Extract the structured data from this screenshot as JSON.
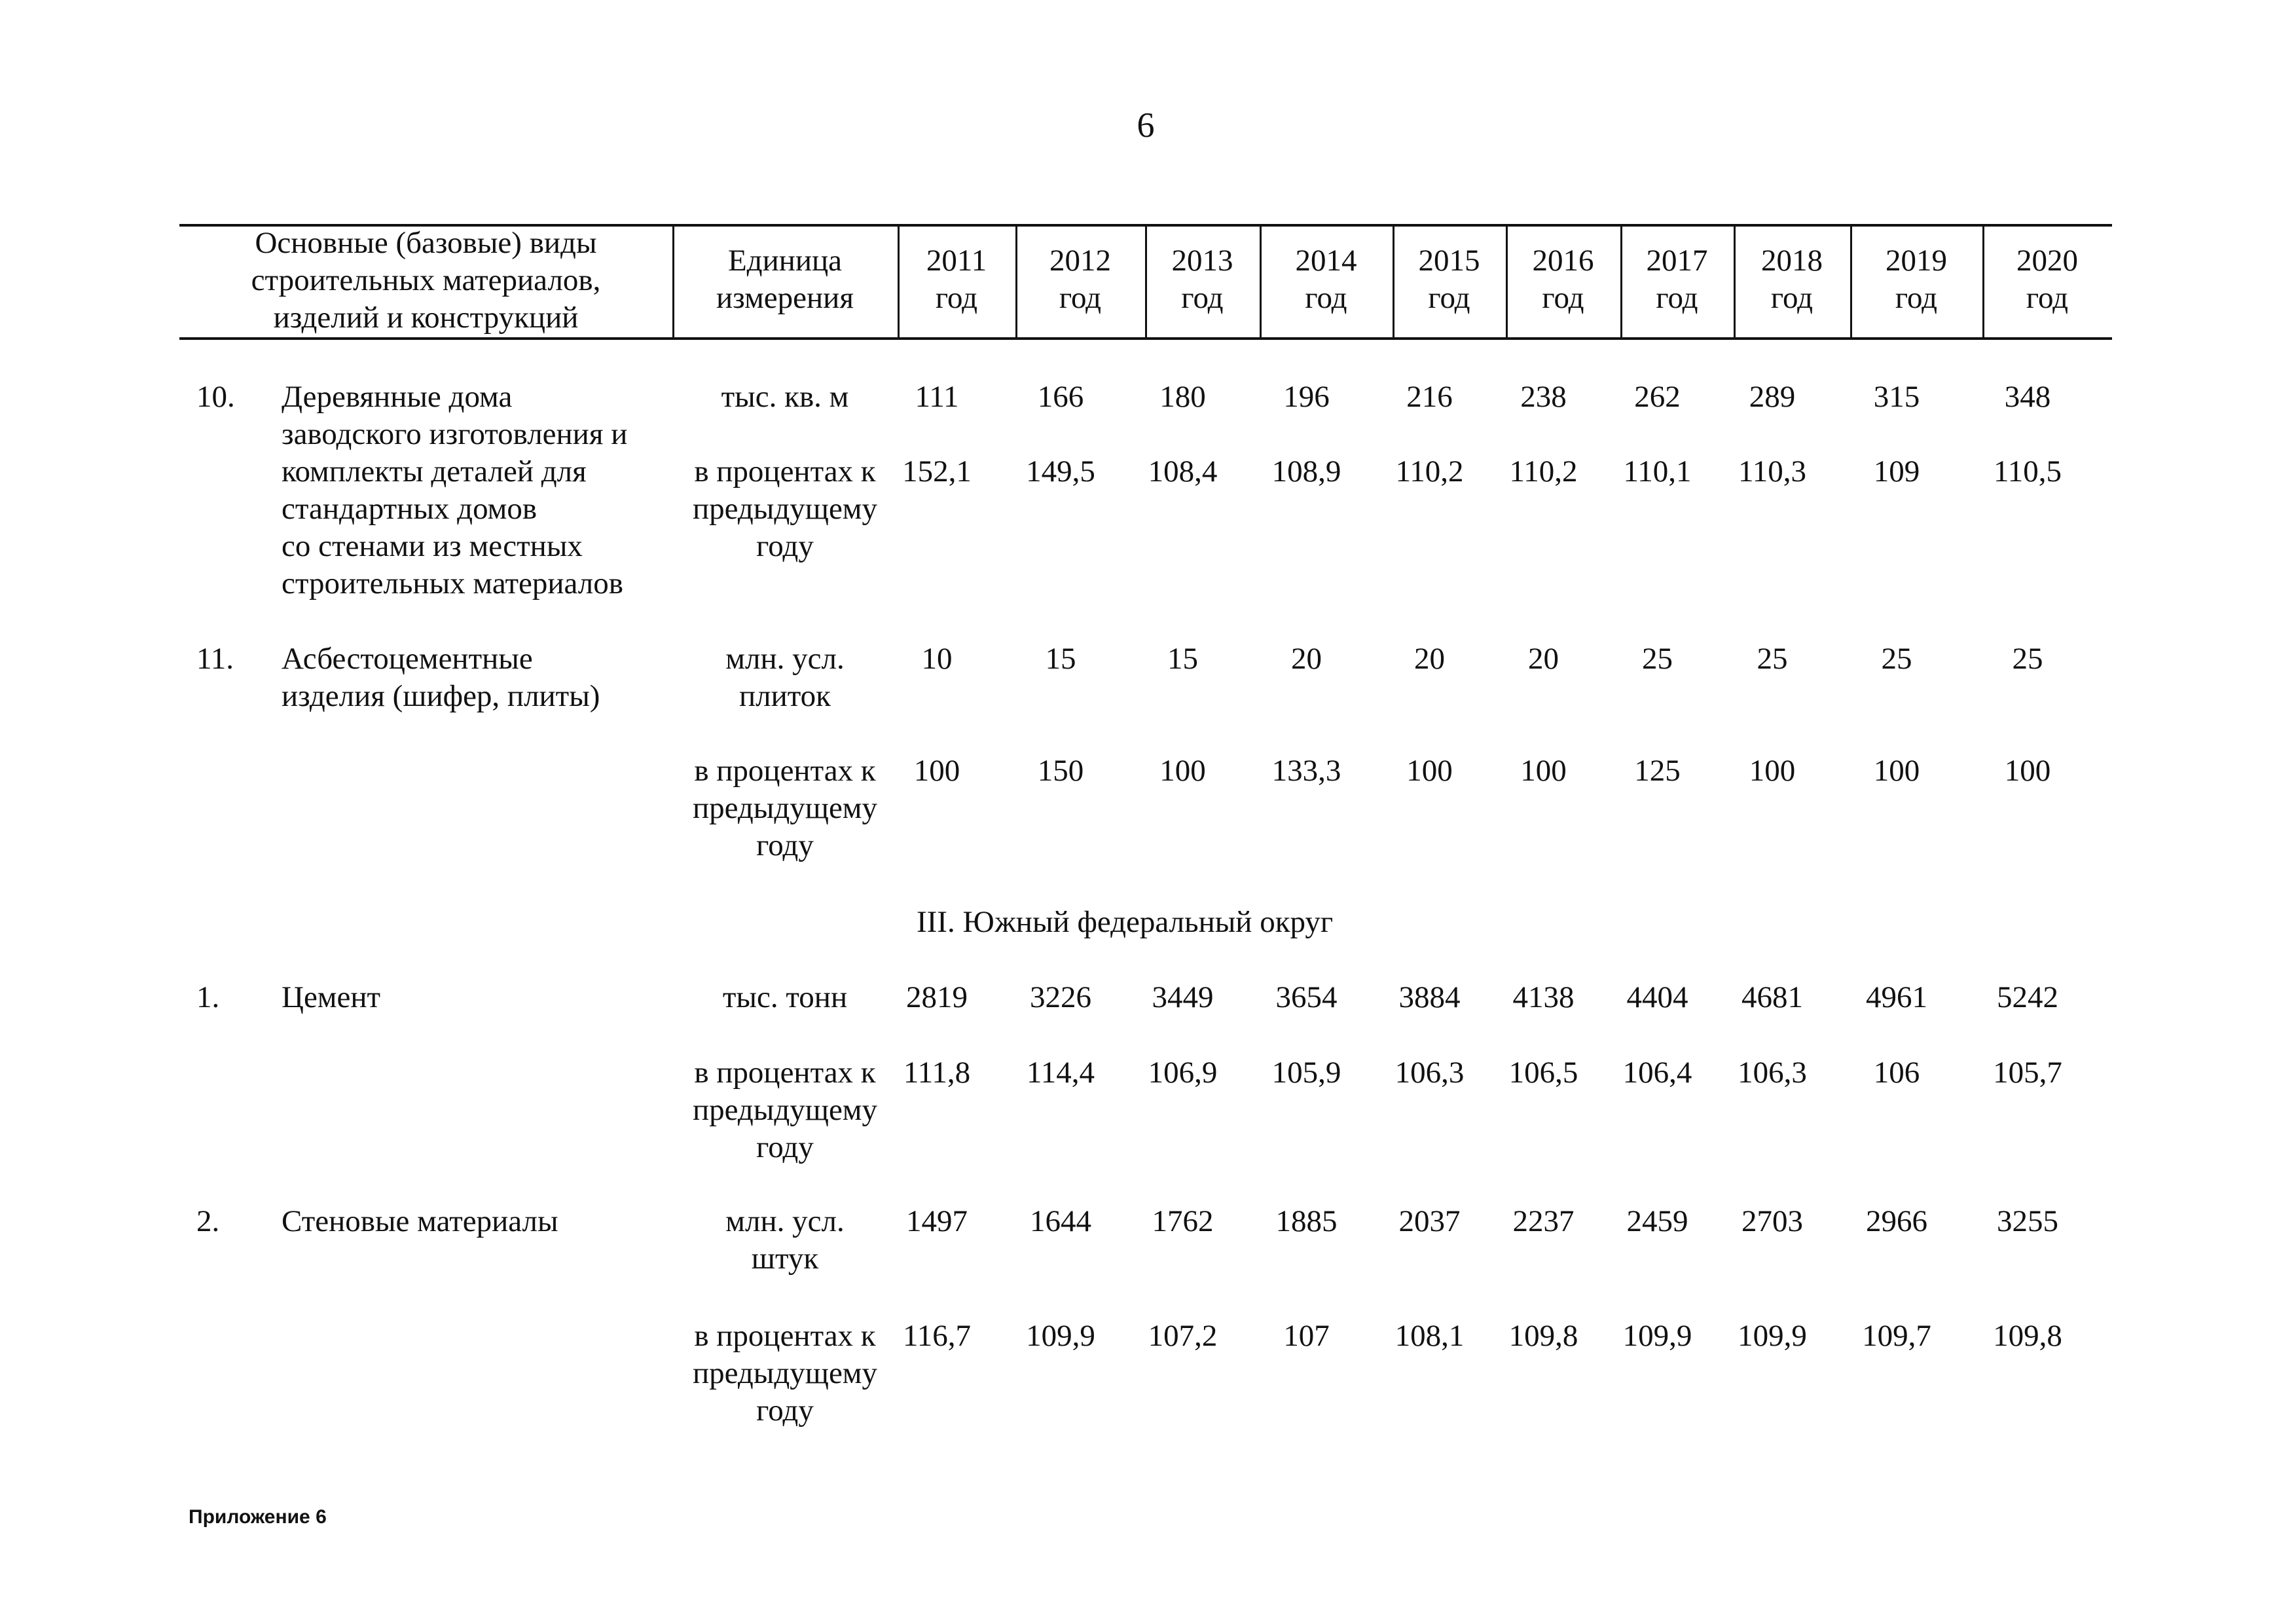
{
  "page_number": "6",
  "header": {
    "name_lines": [
      "Основные (базовые) виды",
      "строительных материалов,",
      "изделий и конструкций"
    ],
    "unit_lines": [
      "Единица",
      "измерения"
    ],
    "years": [
      {
        "year": "2011",
        "suffix": "год"
      },
      {
        "year": "2012",
        "suffix": "год"
      },
      {
        "year": "2013",
        "suffix": "год"
      },
      {
        "year": "2014",
        "suffix": "год"
      },
      {
        "year": "2015",
        "suffix": "год"
      },
      {
        "year": "2016",
        "suffix": "год"
      },
      {
        "year": "2017",
        "suffix": "год"
      },
      {
        "year": "2018",
        "suffix": "год"
      },
      {
        "year": "2019",
        "suffix": "год"
      },
      {
        "year": "2020",
        "suffix": "год"
      }
    ]
  },
  "rows": [
    {
      "num": "10.",
      "name_lines": [
        "Деревянные дома",
        "заводского изготовления и",
        "комплекты деталей для",
        "стандартных домов",
        "со стенами из местных",
        "строительных материалов"
      ],
      "unit_lines": [
        "тыс. кв. м"
      ],
      "values": [
        "111",
        "166",
        "180",
        "196",
        "216",
        "238",
        "262",
        "289",
        "315",
        "348"
      ]
    },
    {
      "num": "",
      "name_lines": [],
      "unit_lines": [
        "в процентах к",
        "предыдущему",
        "году"
      ],
      "values": [
        "152,1",
        "149,5",
        "108,4",
        "108,9",
        "110,2",
        "110,2",
        "110,1",
        "110,3",
        "109",
        "110,5"
      ]
    },
    {
      "num": "11.",
      "name_lines": [
        "Асбестоцементные",
        "изделия (шифер, плиты)"
      ],
      "unit_lines": [
        "млн. усл.",
        "плиток"
      ],
      "values": [
        "10",
        "15",
        "15",
        "20",
        "20",
        "20",
        "25",
        "25",
        "25",
        "25"
      ]
    },
    {
      "num": "",
      "name_lines": [],
      "unit_lines": [
        "в процентах к",
        "предыдущему",
        "году"
      ],
      "values": [
        "100",
        "150",
        "100",
        "133,3",
        "100",
        "100",
        "125",
        "100",
        "100",
        "100"
      ]
    },
    {
      "num": "1.",
      "name_lines": [
        "Цемент"
      ],
      "unit_lines": [
        "тыс. тонн"
      ],
      "values": [
        "2819",
        "3226",
        "3449",
        "3654",
        "3884",
        "4138",
        "4404",
        "4681",
        "4961",
        "5242"
      ]
    },
    {
      "num": "",
      "name_lines": [],
      "unit_lines": [
        "в процентах к",
        "предыдущему",
        "году"
      ],
      "values": [
        "111,8",
        "114,4",
        "106,9",
        "105,9",
        "106,3",
        "106,5",
        "106,4",
        "106,3",
        "106",
        "105,7"
      ]
    },
    {
      "num": "2.",
      "name_lines": [
        "Стеновые материалы"
      ],
      "unit_lines": [
        "млн. усл.",
        "штук"
      ],
      "values": [
        "1497",
        "1644",
        "1762",
        "1885",
        "2037",
        "2237",
        "2459",
        "2703",
        "2966",
        "3255"
      ]
    },
    {
      "num": "",
      "name_lines": [],
      "unit_lines": [
        "в процентах к",
        "предыдущему",
        "году"
      ],
      "values": [
        "116,7",
        "109,9",
        "107,2",
        "107",
        "108,1",
        "109,8",
        "109,9",
        "109,9",
        "109,7",
        "109,8"
      ]
    }
  ],
  "section_title": "III. Южный федеральный округ",
  "footer": "Приложение 6"
}
